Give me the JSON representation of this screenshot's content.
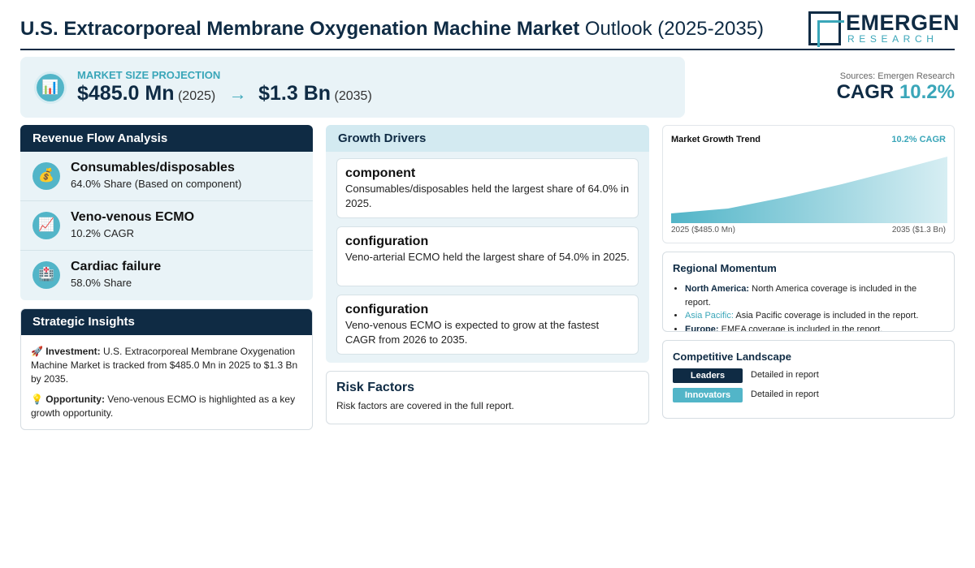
{
  "header": {
    "title_bold": "U.S. Extracorporeal Membrane Oxygenation Machine Market",
    "title_rest": "Outlook (2025-2035)",
    "logo_name": "EMERGEN",
    "logo_sub": "RESEARCH"
  },
  "projection": {
    "icon": "chart-icon",
    "label": "MARKET SIZE PROJECTION",
    "start_value": "$485.0 Mn",
    "start_year": "(2025)",
    "arrow": "→",
    "end_value": "$1.3 Bn",
    "end_year": "(2035)"
  },
  "cagr": {
    "sources": "Sources: Emergen Research",
    "label": "CAGR",
    "value": "10.2%"
  },
  "revenue_flow": {
    "title": "Revenue Flow Analysis",
    "items": [
      {
        "icon": "money-bag-icon",
        "title": "Consumables/disposables",
        "sub": "64.0% Share (Based on component)"
      },
      {
        "icon": "trend-up-icon",
        "title": "Veno-venous ECMO",
        "sub": "10.2% CAGR"
      },
      {
        "icon": "hospital-icon",
        "title": "Cardiac failure",
        "sub": "58.0% Share"
      }
    ]
  },
  "insights": {
    "title": "Strategic Insights",
    "investment_label": "Investment:",
    "investment_text": "U.S. Extracorporeal Membrane Oxygenation Machine Market is tracked from $485.0 Mn in 2025 to $1.3 Bn by 2035.",
    "opportunity_label": "Opportunity:",
    "opportunity_text": "Veno-venous ECMO is highlighted as a key growth opportunity."
  },
  "drivers": {
    "title": "Growth Drivers",
    "items": [
      {
        "title": "component",
        "text": "Consumables/disposables held the largest share of 64.0% in 2025."
      },
      {
        "title": "configuration",
        "text": "Veno-arterial ECMO held the largest share of 54.0% in 2025."
      },
      {
        "title": "configuration",
        "text": "Veno-venous ECMO is expected to grow at the fastest CAGR from 2026 to 2035."
      }
    ]
  },
  "risk": {
    "title": "Risk Factors",
    "text": "Risk factors are covered in the full report."
  },
  "trend": {
    "title": "Market Growth Trend",
    "cagr_label": "10.2% CAGR",
    "start_label": "2025 ($485.0 Mn)",
    "end_label": "2035 ($1.3 Bn)"
  },
  "regional": {
    "title": "Regional Momentum",
    "items": [
      {
        "region": "North America:",
        "text": "North America coverage is included in the report."
      },
      {
        "region": "Asia Pacific:",
        "text": "Asia Pacific coverage is included in the report."
      },
      {
        "region": "Europe:",
        "text": "EMEA coverage is included in the report."
      }
    ]
  },
  "competitive": {
    "title": "Competitive Landscape",
    "rows": [
      {
        "tag": "Leaders",
        "text": "Detailed in report"
      },
      {
        "tag": "Innovators",
        "text": "Detailed in report"
      }
    ]
  },
  "colors": {
    "navy": "#0f2b44",
    "teal": "#3aa6b9",
    "panel": "#e9f3f7"
  }
}
